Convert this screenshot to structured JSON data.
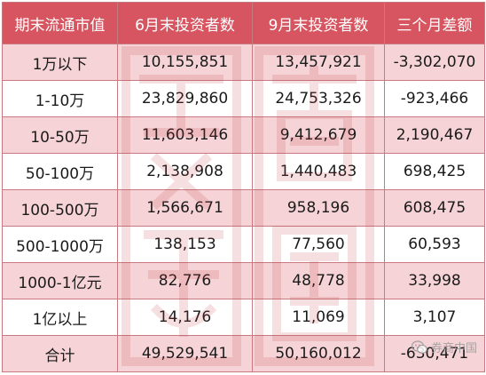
{
  "table": {
    "headers": [
      "期末流通市值",
      "6月末投资者数",
      "9月末投资者数",
      "三个月差额"
    ],
    "rows": [
      [
        "1万以下",
        "10,155,851",
        "13,457,921",
        "-3,302,070"
      ],
      [
        "1-10万",
        "23,829,860",
        "24,753,326",
        "-923,466"
      ],
      [
        "10-50万",
        "11,603,146",
        "9,412,679",
        "2,190,467"
      ],
      [
        "50-100万",
        "2,138,908",
        "1,440,483",
        "698,425"
      ],
      [
        "100-500万",
        "1,566,671",
        "958,196",
        "608,475"
      ],
      [
        "500-1000万",
        "138,153",
        "77,560",
        "60,593"
      ],
      [
        "1000-1亿元",
        "82,776",
        "48,778",
        "33,998"
      ],
      [
        "1亿以上",
        "14,176",
        "11,069",
        "3,107"
      ],
      [
        "合计",
        "49,529,541",
        "50,160,012",
        "-630,471"
      ]
    ]
  },
  "watermark": {
    "logo_text": "券商中国",
    "seal_text": "券商中国"
  },
  "colors": {
    "header_bg": "#d75560",
    "shade_row_bg": "#f6d3d6",
    "border": "#c87a80"
  }
}
